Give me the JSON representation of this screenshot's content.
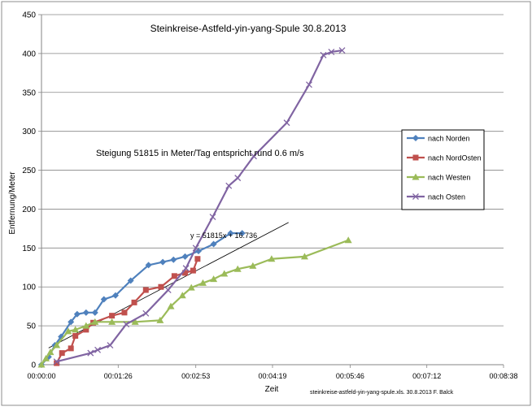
{
  "chart_data": {
    "type": "line",
    "title": "Steinkreise-Astfeld-yin-yang-Spule 30.8.2013",
    "annotation": "Steigung 51815 in Meter/Tag  entspricht rund  0.6 m/s",
    "trendline_label": "y = 51815x + 16.736",
    "footer": "steinkreise-astfeld-yin-yang-spule.xls. 30.8.2013 F. Balck",
    "xlabel": "Zeit",
    "ylabel": "Entfernung/Meter",
    "x_tick_labels": [
      "00:00:00",
      "00:01:26",
      "00:02:53",
      "00:04:19",
      "00:05:46",
      "00:07:12",
      "00:08:38"
    ],
    "x_tick_seconds": [
      0,
      86,
      173,
      259,
      346,
      432,
      518
    ],
    "xlim_seconds": [
      0,
      518
    ],
    "y_ticks": [
      0,
      50,
      100,
      150,
      200,
      250,
      300,
      350,
      400,
      450
    ],
    "ylim": [
      0,
      450
    ],
    "grid": "horizontal",
    "legend_position": "right",
    "trendline": {
      "slope_per_day": 51815,
      "intercept": 16.736,
      "x_range_seconds": [
        8,
        277
      ]
    },
    "series": [
      {
        "name": "nach Norden",
        "color": "#4f81bd",
        "marker": "diamond",
        "x": [
          0,
          8,
          15,
          22,
          33,
          40,
          50,
          60,
          70,
          83,
          100,
          120,
          136,
          148,
          161,
          176,
          193,
          212,
          225
        ],
        "y": [
          0,
          10,
          25,
          36,
          55,
          65,
          67,
          67,
          84,
          89,
          108,
          128,
          132,
          135,
          139,
          146,
          155,
          169,
          169
        ]
      },
      {
        "name": "nach NordOsten",
        "color": "#c0504d",
        "marker": "square",
        "x": [
          17,
          23,
          33,
          38,
          50,
          58,
          79,
          93,
          104,
          117,
          134,
          149,
          161,
          170,
          175
        ],
        "y": [
          2,
          15,
          21,
          37,
          45,
          54,
          63,
          67,
          80,
          96,
          100,
          114,
          118,
          121,
          136
        ]
      },
      {
        "name": "nach Westen",
        "color": "#9bbb59",
        "marker": "triangle",
        "x": [
          0,
          5,
          10,
          17,
          30,
          38,
          50,
          60,
          79,
          105,
          133,
          145,
          158,
          168,
          181,
          193,
          205,
          220,
          237,
          258,
          295,
          344
        ],
        "y": [
          0,
          8,
          16,
          25,
          43,
          45,
          50,
          55,
          55,
          55,
          57,
          75,
          89,
          99,
          105,
          110,
          117,
          123,
          127,
          136,
          139,
          160
        ]
      },
      {
        "name": "nach Osten",
        "color": "#8064a2",
        "marker": "x",
        "x": [
          17,
          55,
          63,
          77,
          95,
          117,
          142,
          162,
          173,
          192,
          210,
          220,
          238,
          275,
          300,
          316,
          325,
          337
        ],
        "y": [
          4,
          15,
          19,
          25,
          52,
          66,
          96,
          124,
          150,
          190,
          230,
          240,
          268,
          311,
          360,
          398,
          402,
          404
        ]
      }
    ]
  }
}
